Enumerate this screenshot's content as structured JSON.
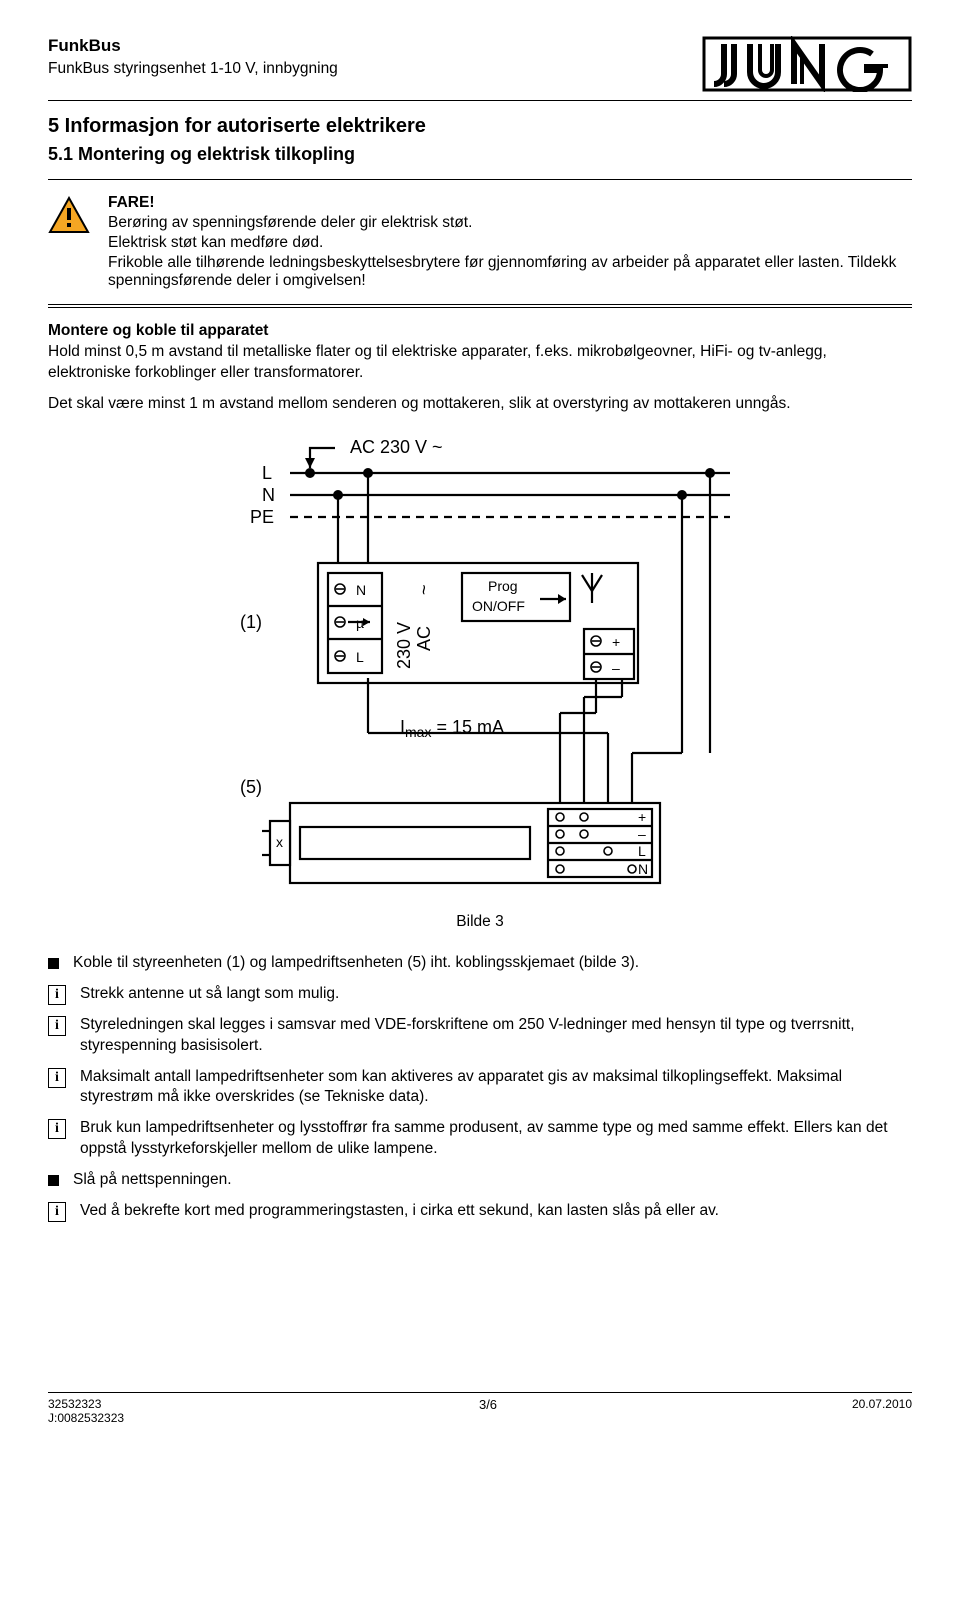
{
  "header": {
    "brand": "FunkBus",
    "product": "FunkBus styringsenhet 1-10 V, innbygning"
  },
  "section_title": "5 Informasjon for autoriserte elektrikere",
  "subsection_title": "5.1 Montering og elektrisk tilkopling",
  "warning": {
    "danger": "FARE!",
    "line1": "Berøring av spenningsførende deler gir elektrisk støt.",
    "line2": "Elektrisk støt kan medføre død.",
    "line3": "Frikoble alle tilhørende ledningsbeskyttelsesbrytere før gjennomføring av arbeider på apparatet eller lasten. Tildekk spenningsførende deler i omgivelsen!"
  },
  "mount": {
    "title": "Montere og koble til apparatet",
    "para1": "Hold minst 0,5 m avstand til metalliske flater og til elektriske apparater, f.eks. mikrobølgeovner, HiFi- og tv-anlegg, elektroniske forkoblinger eller transformatorer.",
    "para2": "Det skal være minst 1 m avstand mellom senderen og mottakeren, slik at overstyring av mottakeren unngås."
  },
  "caption": "Bilde 3",
  "items": [
    {
      "type": "bullet",
      "text": "Koble til styreenheten (1) og lampedriftsenheten (5) iht. koblingsskjemaet (bilde 3)."
    },
    {
      "type": "info",
      "text": "Strekk antenne ut så langt som mulig."
    },
    {
      "type": "info",
      "text": "Styreledningen skal legges i samsvar med VDE-forskriftene om 250 V-ledninger med hensyn til type og tverrsnitt, styrespenning basisisolert."
    },
    {
      "type": "info",
      "text": "Maksimalt antall lampedriftsenheter som kan aktiveres av apparatet gis av maksimal tilkoplingseffekt. Maksimal styrestrøm må ikke overskrides (se Tekniske data)."
    },
    {
      "type": "info",
      "text": "Bruk kun lampedriftsenheter og lysstoffrør fra samme produsent, av samme type og med samme effekt. Ellers kan det oppstå lysstyrkeforskjeller mellom de ulike lampene."
    },
    {
      "type": "bullet",
      "text": "Slå på nettspenningen."
    },
    {
      "type": "info",
      "text": "Ved å bekrefte kort med programmeringstasten, i cirka ett sekund, kan lasten slås på eller av."
    }
  ],
  "footer": {
    "code1": "32532323",
    "code2": "J:0082532323",
    "page": "3/6",
    "date": "20.07.2010"
  },
  "diagram": {
    "labels": {
      "ac": "AC 230 V ~",
      "L": "L",
      "N": "N",
      "PE": "PE",
      "ref1": "(1)",
      "ref5": "(5)",
      "imax": "I",
      "imax_sub": "max",
      "imax_val": " = 15 mA",
      "prog": "Prog",
      "onoff": "ON/OFF",
      "termN": "N",
      "termMu": "µ",
      "termL": "L",
      "rot230": "230 V",
      "rotAC": "AC",
      "plus": "+",
      "minus": "–",
      "bL": "L",
      "bN": "N",
      "x": "x"
    }
  }
}
